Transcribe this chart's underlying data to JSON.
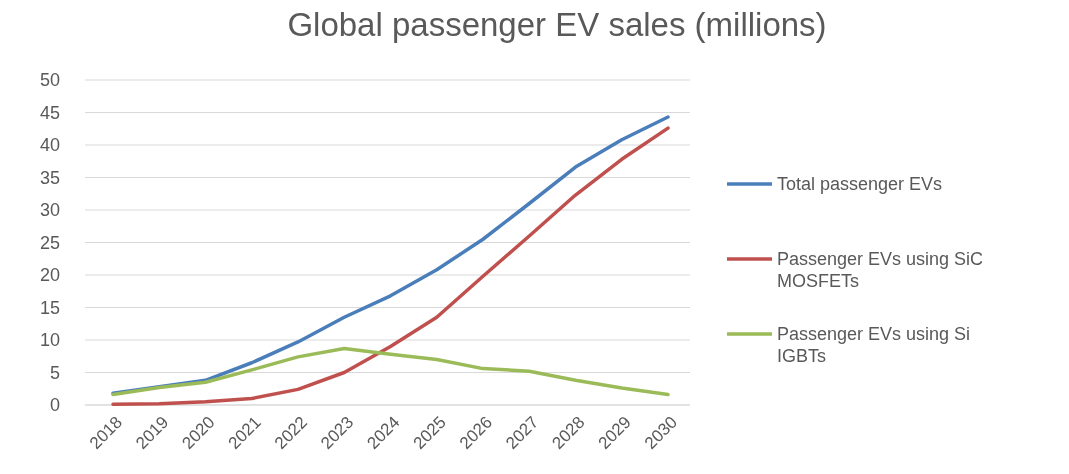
{
  "chart_data": {
    "type": "line",
    "title": "Global passenger EV sales (millions)",
    "categories": [
      "2018",
      "2019",
      "2020",
      "2021",
      "2022",
      "2023",
      "2024",
      "2025",
      "2026",
      "2027",
      "2028",
      "2029",
      "2030"
    ],
    "series": [
      {
        "name": "Total passenger EVs",
        "color": "#4a7ebb",
        "values": [
          1.8,
          2.8,
          3.8,
          6.5,
          9.7,
          13.5,
          16.8,
          20.8,
          25.5,
          31,
          36.6,
          40.8,
          44.3
        ]
      },
      {
        "name": "Passenger EVs using SiC MOSFETs",
        "color": "#c0504d",
        "values": [
          0.1,
          0.2,
          0.5,
          1,
          2.4,
          5,
          9,
          13.5,
          19.8,
          26,
          32.3,
          37.8,
          42.6
        ]
      },
      {
        "name": "Passenger EVs using Si IGBTs",
        "color": "#9bbb59",
        "values": [
          1.6,
          2.7,
          3.5,
          5.4,
          7.4,
          8.7,
          7.8,
          7,
          5.6,
          5.2,
          3.8,
          2.6,
          1.6
        ]
      }
    ],
    "ylim": [
      0,
      50
    ],
    "yticks": [
      0,
      5,
      10,
      15,
      20,
      25,
      30,
      35,
      40,
      45,
      50
    ],
    "grid": "y",
    "legend": "right",
    "marker": "none",
    "line_style": "solid"
  }
}
